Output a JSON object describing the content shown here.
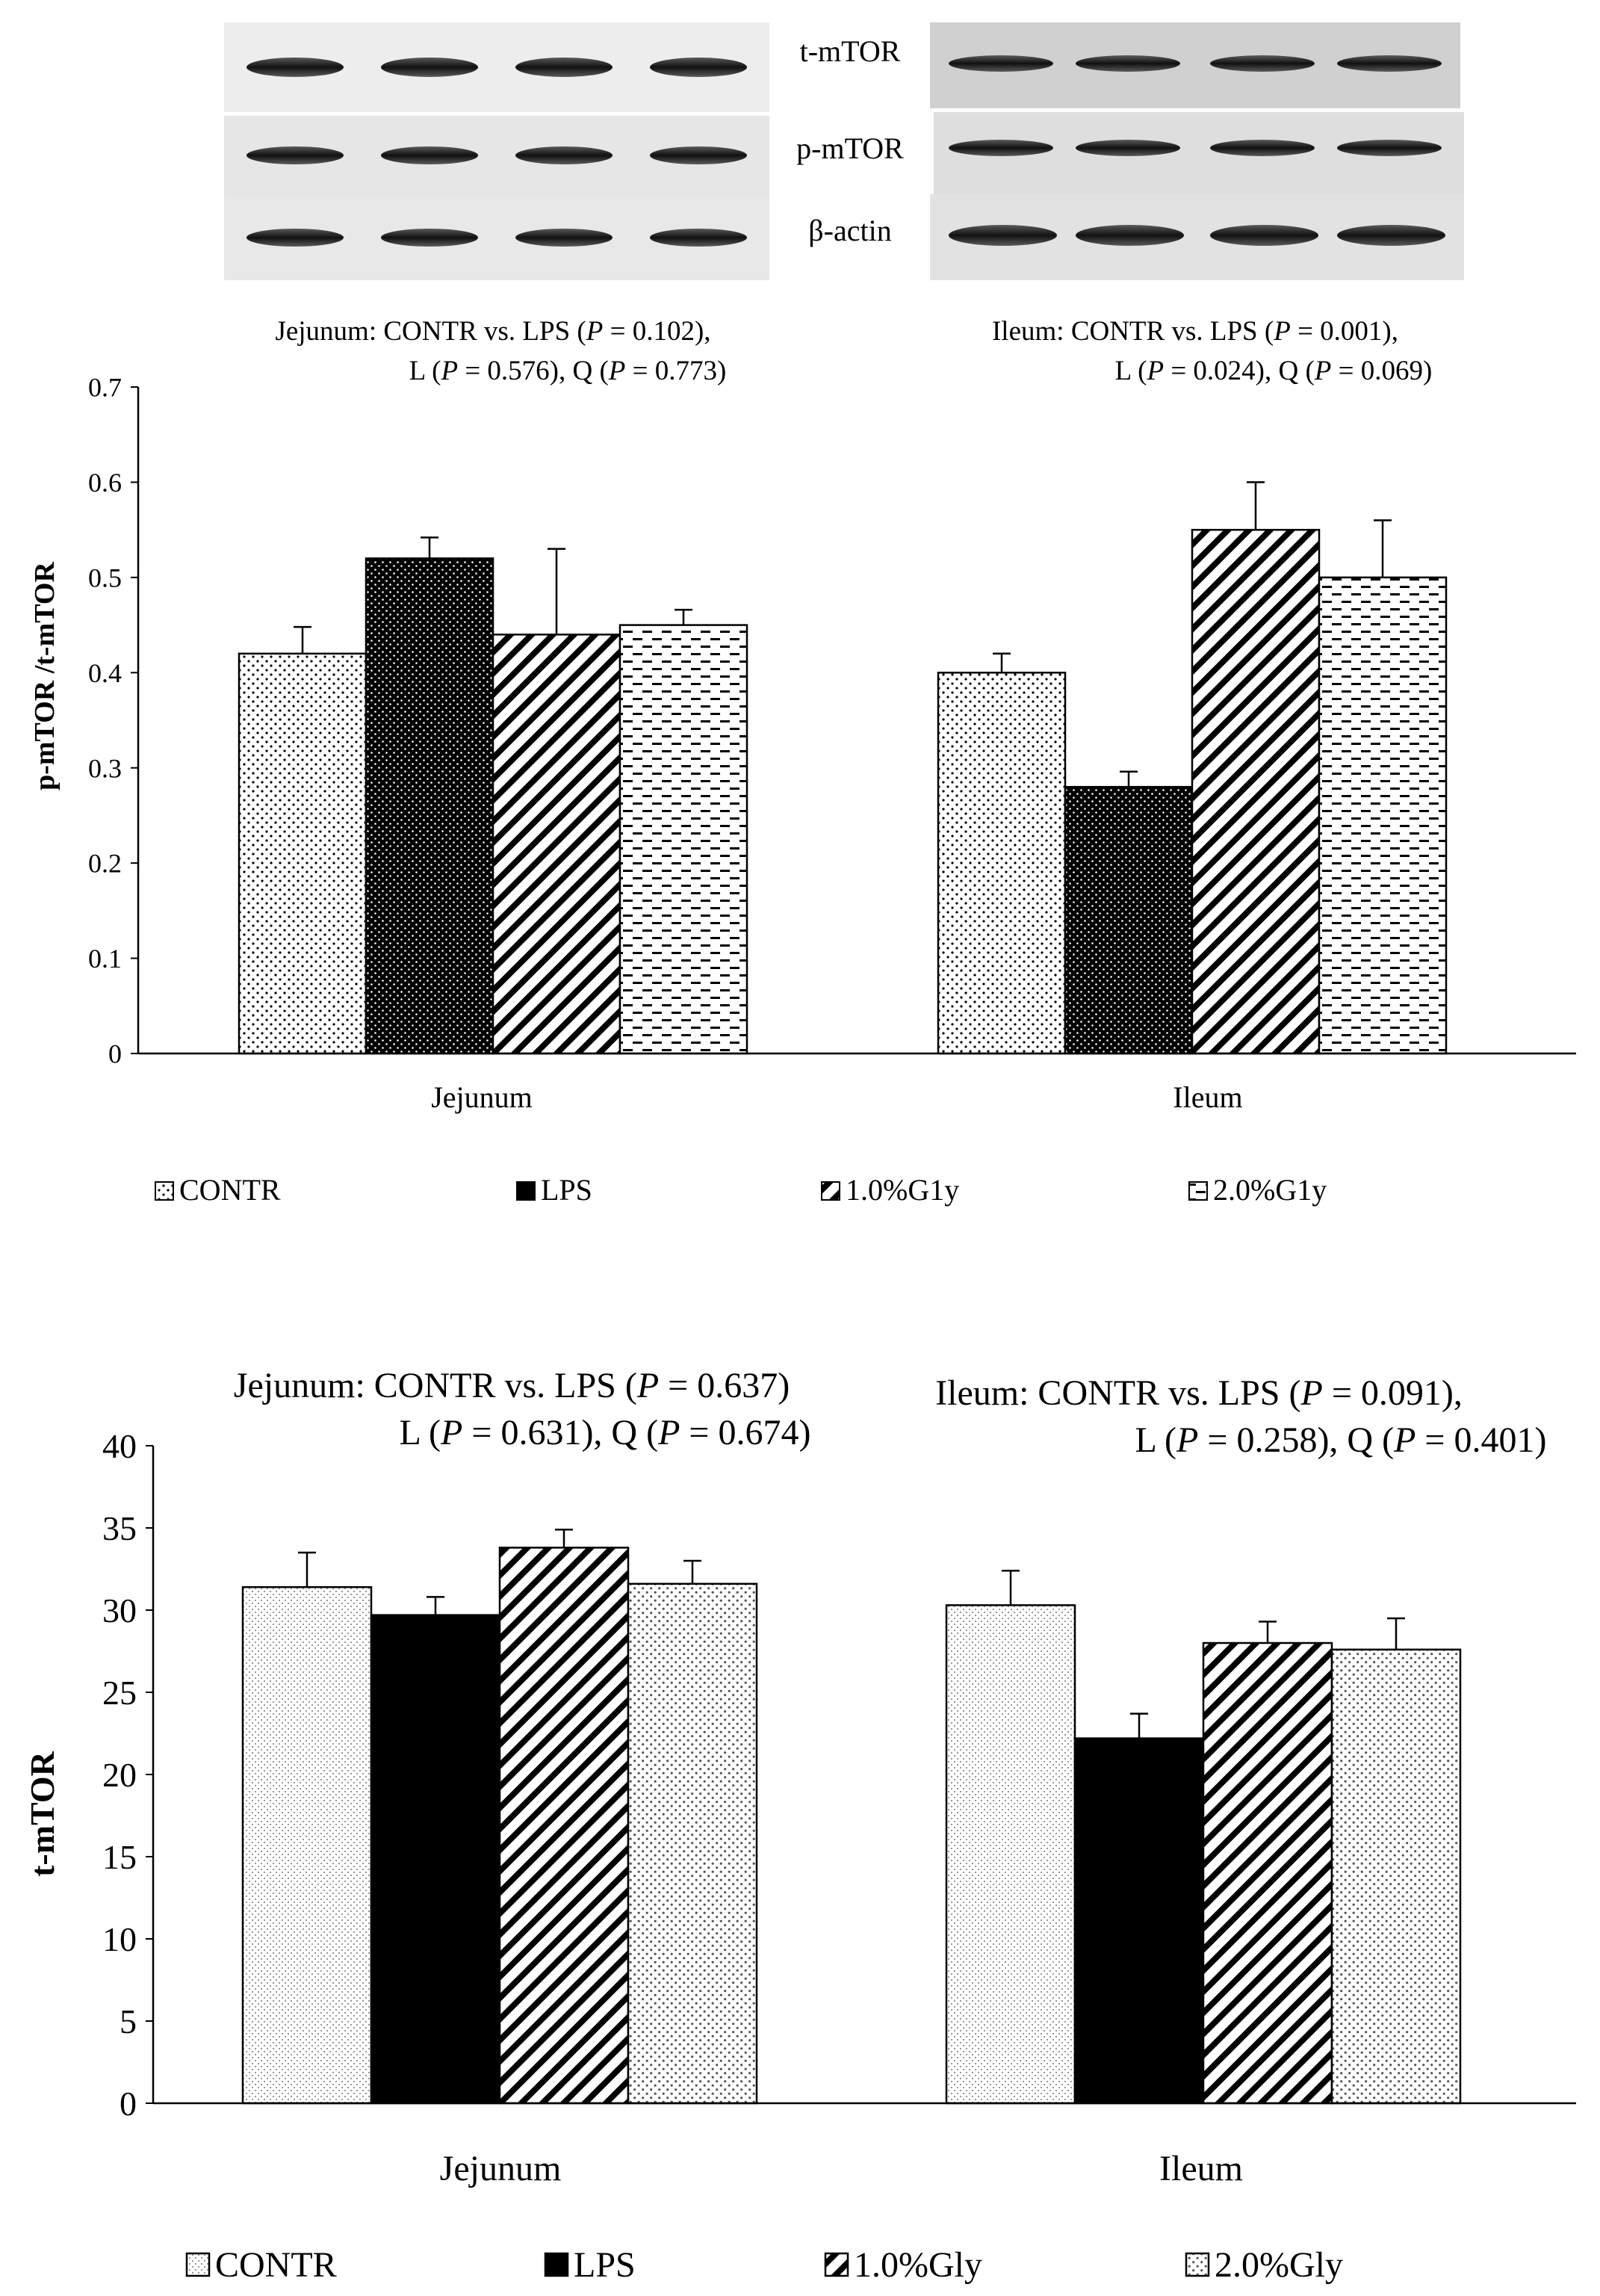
{
  "blots": {
    "rows": [
      "t-mTOR",
      "p-mTOR",
      "β-actin"
    ]
  },
  "chart_data": [
    {
      "type": "bar",
      "title": "",
      "annotations": {
        "jejunum": [
          "Jejunum: CONTR  vs. LPS (P = 0.102),",
          "L (P = 0.576),  Q (P = 0.773)"
        ],
        "ileum": [
          "Ileum:  CONTR  vs. LPS (P = 0.001),",
          "L (P = 0.024),  Q (P = 0.069)"
        ]
      },
      "xlabel": "",
      "ylabel": "p-mTOR  /t-mTOR",
      "ylim": [
        0,
        0.7
      ],
      "yticks": [
        "0",
        "0.1",
        "0.2",
        "0.3",
        "0.4",
        "0.5",
        "0.6",
        "0.7"
      ],
      "grid": false,
      "legend_position": "bottom",
      "categories": [
        "Jejunum",
        "Ileum"
      ],
      "series": [
        {
          "name": "CONTR",
          "pattern": "dots-sparse",
          "values": [
            0.42,
            0.4
          ],
          "errors": [
            0.028,
            0.02
          ]
        },
        {
          "name": "LPS",
          "pattern": "black-dots",
          "values": [
            0.52,
            0.28
          ],
          "errors": [
            0.022,
            0.016
          ]
        },
        {
          "name": "1.0%G1y",
          "pattern": "diagonal",
          "values": [
            0.44,
            0.55
          ],
          "errors": [
            0.09,
            0.05
          ]
        },
        {
          "name": "2.0%G1y",
          "pattern": "dashes",
          "values": [
            0.45,
            0.5
          ],
          "errors": [
            0.016,
            0.06
          ]
        }
      ]
    },
    {
      "type": "bar",
      "title": "",
      "annotations": {
        "jejunum": [
          "Jejunum: CONTR vs. LPS (P = 0.637)",
          "L (P = 0.631), Q (P = 0.674)"
        ],
        "ileum": [
          "Ileum: CONTR vs. LPS (P = 0.091),",
          "L (P = 0.258), Q (P = 0.401)"
        ]
      },
      "xlabel": "",
      "ylabel": "t-mTOR",
      "ylim": [
        0,
        40
      ],
      "yticks": [
        "0",
        "5",
        "10",
        "15",
        "20",
        "25",
        "30",
        "35",
        "40"
      ],
      "grid": false,
      "legend_position": "bottom",
      "categories": [
        "Jejunum",
        "Ileum"
      ],
      "series": [
        {
          "name": "CONTR",
          "pattern": "fine-dots",
          "values": [
            31.4,
            30.3
          ],
          "errors": [
            2.1,
            2.1
          ]
        },
        {
          "name": "LPS",
          "pattern": "black",
          "values": [
            29.7,
            22.2
          ],
          "errors": [
            1.1,
            1.5
          ]
        },
        {
          "name": "1.0%Gly",
          "pattern": "diagonal",
          "values": [
            33.8,
            28.0
          ],
          "errors": [
            1.1,
            1.3
          ]
        },
        {
          "name": "2.0%Gly",
          "pattern": "dots-medium",
          "values": [
            31.6,
            27.6
          ],
          "errors": [
            1.4,
            1.9
          ]
        }
      ]
    }
  ]
}
